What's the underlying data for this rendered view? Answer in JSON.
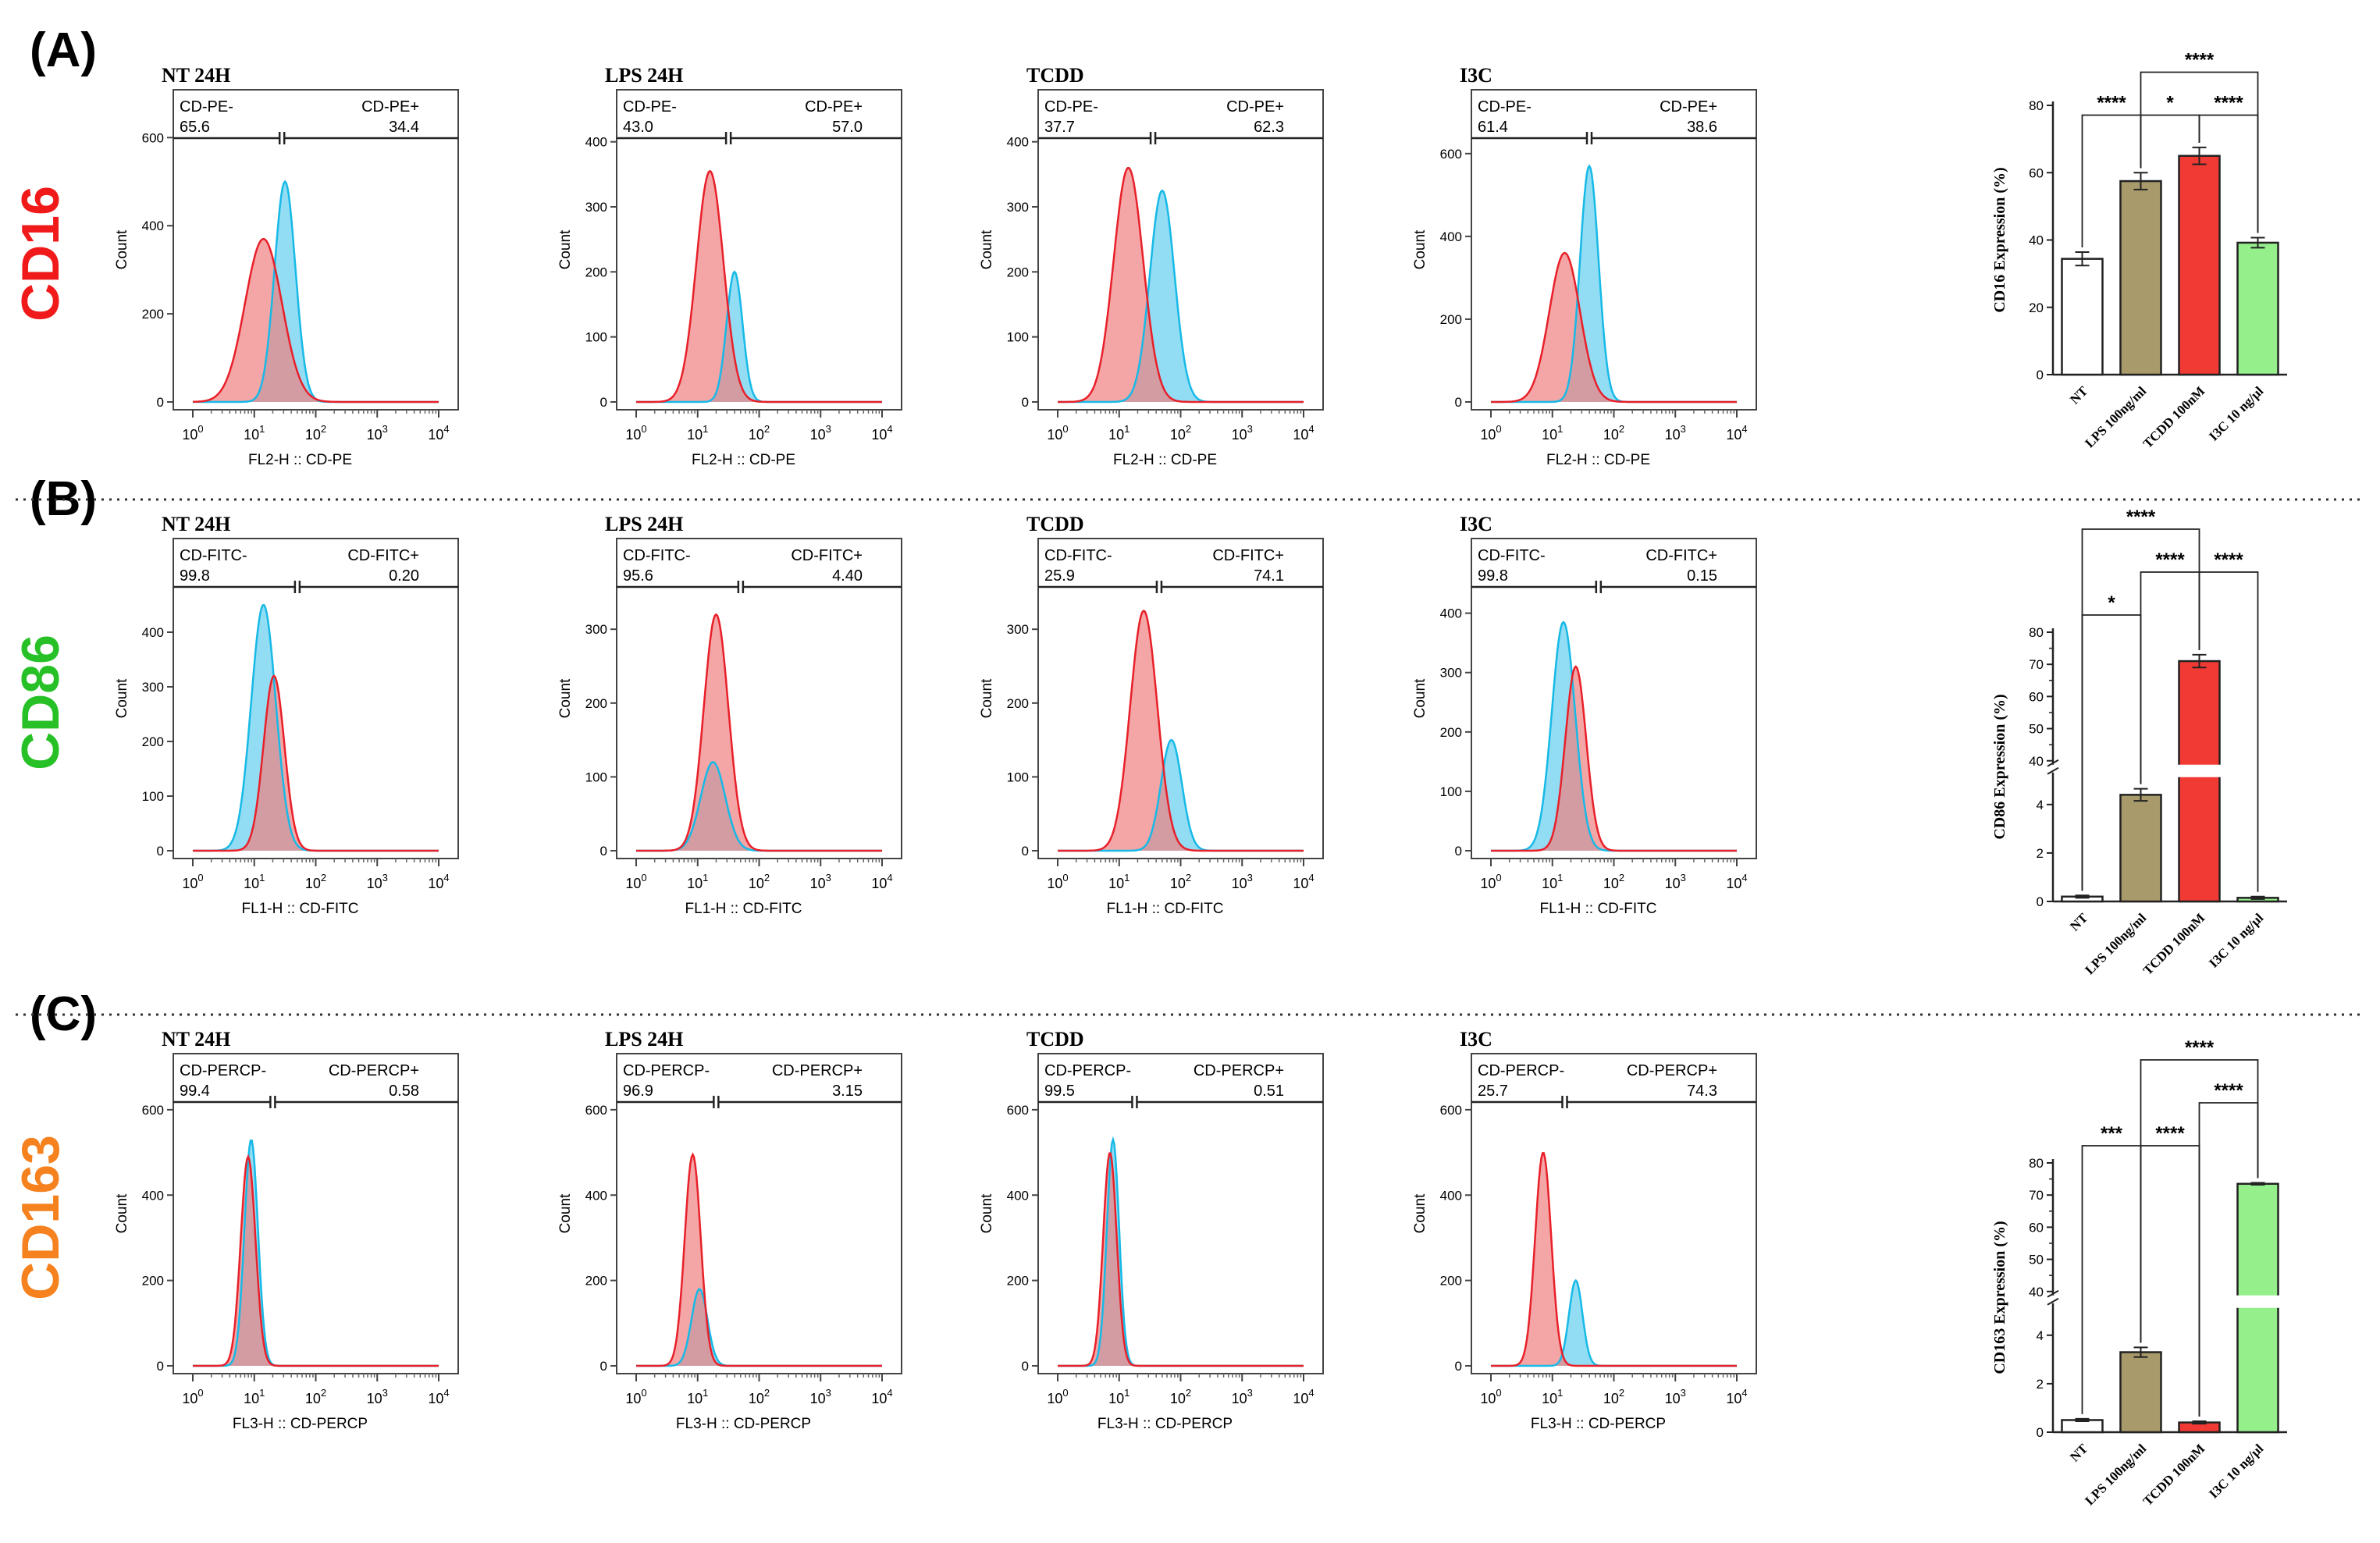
{
  "colors": {
    "red_fill": "#f08080",
    "red_line": "#e8202a",
    "cyan_fill": "#7fd7f2",
    "cyan_line": "#17b9e6",
    "overlap": "#b58aa0",
    "bar_nt": "#ffffff",
    "bar_lps": "#a89a6a",
    "bar_tcdd": "#f23a35",
    "bar_i3c": "#95f08c",
    "marker_cd16": "#f01a1a",
    "marker_cd86": "#27c127",
    "marker_cd163": "#f5821f"
  },
  "panels": [
    {
      "label": "(A)",
      "marker": "CD16",
      "marker_color": "#f01a1a",
      "histograms": [
        {
          "title": "NT 24H",
          "xlabel": "FL2-H :: CD-PE",
          "ylabel": "Count",
          "yticks": [
            "0",
            "200",
            "400",
            "600"
          ],
          "ymax": 620,
          "neg_label": "CD-PE-",
          "neg_value": "65.6",
          "pos_label": "CD-PE+",
          "pos_value": "34.4",
          "gate_log": 1.45,
          "red": {
            "mu": 1.15,
            "sigma": 0.3,
            "peak": 370
          },
          "cyan": {
            "mu": 1.5,
            "sigma": 0.17,
            "peak": 500
          }
        },
        {
          "title": "LPS 24H",
          "xlabel": "FL2-H :: CD-PE",
          "ylabel": "Count",
          "yticks": [
            "0",
            "100",
            "200",
            "300",
            "400"
          ],
          "ymax": 420,
          "neg_label": "CD-PE-",
          "neg_value": "43.0",
          "pos_label": "CD-PE+",
          "pos_value": "57.0",
          "gate_log": 1.5,
          "red": {
            "mu": 1.2,
            "sigma": 0.22,
            "peak": 355
          },
          "cyan": {
            "mu": 1.6,
            "sigma": 0.13,
            "peak": 200
          }
        },
        {
          "title": "TCDD",
          "xlabel": "FL2-H :: CD-PE",
          "ylabel": "Count",
          "yticks": [
            "0",
            "100",
            "200",
            "300",
            "400"
          ],
          "ymax": 420,
          "neg_label": "CD-PE-",
          "neg_value": "37.7",
          "pos_label": "CD-PE+",
          "pos_value": "62.3",
          "gate_log": 1.55,
          "red": {
            "mu": 1.15,
            "sigma": 0.24,
            "peak": 360
          },
          "cyan": {
            "mu": 1.7,
            "sigma": 0.2,
            "peak": 325
          }
        },
        {
          "title": "I3C",
          "xlabel": "FL2-H :: CD-PE",
          "ylabel": "Count",
          "yticks": [
            "0",
            "200",
            "400",
            "600"
          ],
          "ymax": 660,
          "neg_label": "CD-PE-",
          "neg_value": "61.4",
          "pos_label": "CD-PE+",
          "pos_value": "38.6",
          "gate_log": 1.6,
          "red": {
            "mu": 1.2,
            "sigma": 0.25,
            "peak": 360
          },
          "cyan": {
            "mu": 1.6,
            "sigma": 0.15,
            "peak": 570
          }
        }
      ],
      "bar": {
        "ylabel": "CD16 Expression (%)",
        "broken": false,
        "yticks": [
          "0",
          "20",
          "40",
          "60",
          "80"
        ],
        "ylim": [
          0,
          80
        ],
        "categories": [
          "NT",
          "LPS 100ng/ml",
          "TCDD 100nM",
          "I3C 10 ng/µl"
        ],
        "values": [
          34.4,
          57.5,
          65.0,
          39.2
        ],
        "errors": [
          2.0,
          2.5,
          2.5,
          1.5
        ],
        "significance": [
          {
            "from": 0,
            "to": 1,
            "label": "****",
            "level": 1
          },
          {
            "from": 1,
            "to": 2,
            "label": "*",
            "level": 1
          },
          {
            "from": 2,
            "to": 3,
            "label": "****",
            "level": 1
          },
          {
            "from": 1,
            "to": 3,
            "label": "****",
            "level": 2
          }
        ]
      }
    },
    {
      "label": "(B)",
      "marker": "CD86",
      "marker_color": "#27c127",
      "histograms": [
        {
          "title": "NT 24H",
          "xlabel": "FL1-H :: CD-FITC",
          "ylabel": "Count",
          "yticks": [
            "0",
            "100",
            "200",
            "300",
            "400"
          ],
          "ymax": 500,
          "neg_label": "CD-FITC-",
          "neg_value": "99.8",
          "pos_label": "CD-FITC+",
          "pos_value": "0.20",
          "gate_log": 1.7,
          "red": {
            "mu": 1.32,
            "sigma": 0.17,
            "peak": 320
          },
          "cyan": {
            "mu": 1.15,
            "sigma": 0.2,
            "peak": 450
          }
        },
        {
          "title": "LPS 24H",
          "xlabel": "FL1-H :: CD-FITC",
          "ylabel": "Count",
          "yticks": [
            "0",
            "100",
            "200",
            "300"
          ],
          "ymax": 370,
          "neg_label": "CD-FITC-",
          "neg_value": "95.6",
          "pos_label": "CD-FITC+",
          "pos_value": "4.40",
          "gate_log": 1.7,
          "red": {
            "mu": 1.3,
            "sigma": 0.2,
            "peak": 320
          },
          "cyan": {
            "mu": 1.25,
            "sigma": 0.2,
            "peak": 120
          }
        },
        {
          "title": "TCDD",
          "xlabel": "FL1-H :: CD-FITC",
          "ylabel": "Count",
          "yticks": [
            "0",
            "100",
            "200",
            "300"
          ],
          "ymax": 370,
          "neg_label": "CD-FITC-",
          "neg_value": "25.9",
          "pos_label": "CD-FITC+",
          "pos_value": "74.1",
          "gate_log": 1.65,
          "red": {
            "mu": 1.4,
            "sigma": 0.22,
            "peak": 325
          },
          "cyan": {
            "mu": 1.85,
            "sigma": 0.17,
            "peak": 150
          }
        },
        {
          "title": "I3C",
          "xlabel": "FL1-H :: CD-FITC",
          "ylabel": "Count",
          "yticks": [
            "0",
            "100",
            "200",
            "300",
            "400"
          ],
          "ymax": 460,
          "neg_label": "CD-FITC-",
          "neg_value": "99.8",
          "pos_label": "CD-FITC+",
          "pos_value": "0.15",
          "gate_log": 1.75,
          "red": {
            "mu": 1.38,
            "sigma": 0.17,
            "peak": 310
          },
          "cyan": {
            "mu": 1.18,
            "sigma": 0.19,
            "peak": 385
          }
        }
      ],
      "bar": {
        "ylabel": "CD86 Expression (%)",
        "broken": true,
        "yticks_low": [
          "0",
          "2",
          "4"
        ],
        "yticks_high": [
          "40",
          "50",
          "60",
          "70",
          "80"
        ],
        "low_range": [
          0,
          5
        ],
        "high_range": [
          40,
          80
        ],
        "categories": [
          "NT",
          "LPS 100ng/ml",
          "TCDD 100nM",
          "I3C 10 ng/µl"
        ],
        "values": [
          0.2,
          4.4,
          71.0,
          0.15
        ],
        "errors": [
          0.05,
          0.25,
          2.0,
          0.05
        ],
        "significance": [
          {
            "from": 0,
            "to": 1,
            "label": "*",
            "level": 1
          },
          {
            "from": 1,
            "to": 2,
            "label": "****",
            "level": 2
          },
          {
            "from": 2,
            "to": 3,
            "label": "****",
            "level": 2
          },
          {
            "from": 0,
            "to": 2,
            "label": "****",
            "level": 3
          }
        ]
      }
    },
    {
      "label": "(C)",
      "marker": "CD163",
      "marker_color": "#f5821f",
      "histograms": [
        {
          "title": "NT 24H",
          "xlabel": "FL3-H :: CD-PERCP",
          "ylabel": "Count",
          "yticks": [
            "0",
            "200",
            "400",
            "600"
          ],
          "ymax": 640,
          "neg_label": "CD-PERCP-",
          "neg_value": "99.4",
          "pos_label": "CD-PERCP+",
          "pos_value": "0.58",
          "gate_log": 1.3,
          "red": {
            "mu": 0.9,
            "sigma": 0.12,
            "peak": 490
          },
          "cyan": {
            "mu": 0.95,
            "sigma": 0.11,
            "peak": 530
          }
        },
        {
          "title": "LPS 24H",
          "xlabel": "FL3-H :: CD-PERCP",
          "ylabel": "Count",
          "yticks": [
            "0",
            "200",
            "400",
            "600"
          ],
          "ymax": 640,
          "neg_label": "CD-PERCP-",
          "neg_value": "96.9",
          "pos_label": "CD-PERCP+",
          "pos_value": "3.15",
          "gate_log": 1.3,
          "red": {
            "mu": 0.92,
            "sigma": 0.13,
            "peak": 495
          },
          "cyan": {
            "mu": 1.03,
            "sigma": 0.13,
            "peak": 180
          }
        },
        {
          "title": "TCDD",
          "xlabel": "FL3-H :: CD-PERCP",
          "ylabel": "Count",
          "yticks": [
            "0",
            "200",
            "400",
            "600"
          ],
          "ymax": 640,
          "neg_label": "CD-PERCP-",
          "neg_value": "99.5",
          "pos_label": "CD-PERCP+",
          "pos_value": "0.51",
          "gate_log": 1.25,
          "red": {
            "mu": 0.85,
            "sigma": 0.11,
            "peak": 500
          },
          "cyan": {
            "mu": 0.9,
            "sigma": 0.1,
            "peak": 530
          }
        },
        {
          "title": "I3C",
          "xlabel": "FL3-H :: CD-PERCP",
          "ylabel": "Count",
          "yticks": [
            "0",
            "200",
            "400",
            "600"
          ],
          "ymax": 640,
          "neg_label": "CD-PERCP-",
          "neg_value": "25.7",
          "pos_label": "CD-PERCP+",
          "pos_value": "74.3",
          "gate_log": 1.2,
          "red": {
            "mu": 0.85,
            "sigma": 0.13,
            "peak": 500
          },
          "cyan": {
            "mu": 1.38,
            "sigma": 0.11,
            "peak": 200
          }
        }
      ],
      "bar": {
        "ylabel": "CD163 Expression (%)",
        "broken": true,
        "yticks_low": [
          "0",
          "2",
          "4"
        ],
        "yticks_high": [
          "40",
          "50",
          "60",
          "70",
          "80"
        ],
        "low_range": [
          0,
          5
        ],
        "high_range": [
          40,
          80
        ],
        "categories": [
          "NT",
          "LPS 100ng/ml",
          "TCDD 100nM",
          "I3C 10 ng/µl"
        ],
        "values": [
          0.5,
          3.3,
          0.4,
          73.5
        ],
        "errors": [
          0.05,
          0.2,
          0.05,
          0.3
        ],
        "significance": [
          {
            "from": 0,
            "to": 1,
            "label": "***",
            "level": 1
          },
          {
            "from": 1,
            "to": 2,
            "label": "****",
            "level": 1
          },
          {
            "from": 2,
            "to": 3,
            "label": "****",
            "level": 2
          },
          {
            "from": 1,
            "to": 3,
            "label": "****",
            "level": 3
          }
        ]
      }
    }
  ],
  "chart_data": [
    {
      "type": "bar",
      "title": "CD16",
      "categories": [
        "NT",
        "LPS 100ng/ml",
        "TCDD 100nM",
        "I3C 10 ng/µl"
      ],
      "values": [
        34.4,
        57.5,
        65.0,
        39.2
      ],
      "xlabel": "",
      "ylabel": "CD16 Expression (%)",
      "ylim": [
        0,
        80
      ]
    },
    {
      "type": "bar",
      "title": "CD86",
      "categories": [
        "NT",
        "LPS 100ng/ml",
        "TCDD 100nM",
        "I3C 10 ng/µl"
      ],
      "values": [
        0.2,
        4.4,
        71.0,
        0.15
      ],
      "xlabel": "",
      "ylabel": "CD86 Expression (%)",
      "ylim": [
        0,
        80
      ]
    },
    {
      "type": "bar",
      "title": "CD163",
      "categories": [
        "NT",
        "LPS 100ng/ml",
        "TCDD 100nM",
        "I3C 10 ng/µl"
      ],
      "values": [
        0.5,
        3.3,
        0.4,
        73.5
      ],
      "xlabel": "",
      "ylabel": "CD163 Expression (%)",
      "ylim": [
        0,
        80
      ]
    }
  ]
}
